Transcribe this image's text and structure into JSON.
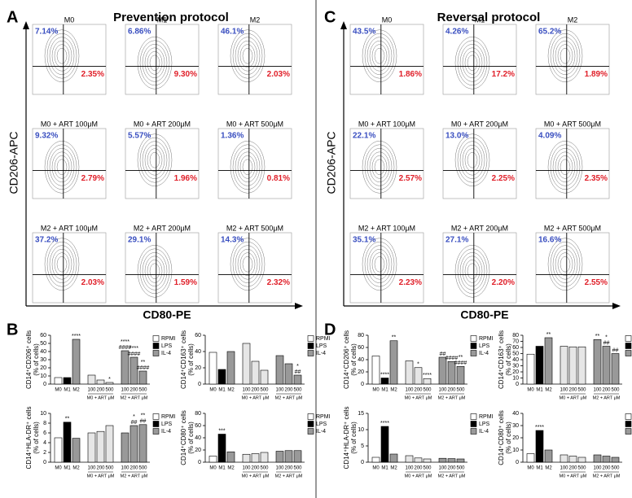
{
  "left": {
    "letter": "A",
    "title": "Prevention protocol",
    "y_axis": "CD206-APC",
    "x_axis": "CD80-PE",
    "bars_letter": "B",
    "plots": [
      {
        "title": "M0",
        "ul": "7.14%",
        "lr": "2.35%"
      },
      {
        "title": "M1",
        "ul": "6.86%",
        "lr": "9.30%"
      },
      {
        "title": "M2",
        "ul": "46.1%",
        "lr": "2.03%"
      },
      {
        "title": "M0 + ART 100μM",
        "ul": "9.32%",
        "lr": "2.79%"
      },
      {
        "title": "M0 + ART 200μM",
        "ul": "5.57%",
        "lr": "1.96%"
      },
      {
        "title": "M0 + ART 500μM",
        "ul": "1.36%",
        "lr": "0.81%"
      },
      {
        "title": "M2 + ART 100μM",
        "ul": "37.2%",
        "lr": "2.03%"
      },
      {
        "title": "M2 + ART 200μM",
        "ul": "29.1%",
        "lr": "1.59%"
      },
      {
        "title": "M2 + ART 500μM",
        "ul": "14.3%",
        "lr": "2.32%"
      }
    ]
  },
  "right": {
    "letter": "C",
    "title": "Reversal protocol",
    "y_axis": "CD206-APC",
    "x_axis": "CD80-PE",
    "bars_letter": "D",
    "plots": [
      {
        "title": "M0",
        "ul": "43.5%",
        "lr": "1.86%"
      },
      {
        "title": "M1",
        "ul": "4.26%",
        "lr": "17.2%"
      },
      {
        "title": "M2",
        "ul": "65.2%",
        "lr": "1.89%"
      },
      {
        "title": "M0 + ART 100μM",
        "ul": "22.1%",
        "lr": "2.57%"
      },
      {
        "title": "M0 + ART 200μM",
        "ul": "13.0%",
        "lr": "2.25%"
      },
      {
        "title": "M0 + ART 500μM",
        "ul": "4.09%",
        "lr": "2.35%"
      },
      {
        "title": "M2 + ART 100μM",
        "ul": "35.1%",
        "lr": "2.23%"
      },
      {
        "title": "M2 + ART 200μM",
        "ul": "27.1%",
        "lr": "2.20%"
      },
      {
        "title": "M2 + ART 500μM",
        "ul": "16.6%",
        "lr": "2.55%"
      }
    ]
  },
  "chart_data": [
    {
      "type": "bar",
      "ylabel": [
        "CD14⁺CD206⁺ cells",
        "(% of cells)"
      ],
      "categories": [
        "M0",
        "M1",
        "M2",
        "100",
        "200",
        "500",
        "100",
        "200",
        "500"
      ],
      "groups": [
        "M0 + ART μM",
        "M2 + ART μM"
      ],
      "values": [
        8,
        8,
        55,
        11,
        5,
        2,
        41,
        33,
        16
      ],
      "colors": [
        "#ffffff",
        "#000000",
        "#999999",
        "#e6e6e6",
        "#e6e6e6",
        "#e6e6e6",
        "#999999",
        "#999999",
        "#999999"
      ],
      "ylim": [
        0,
        60
      ],
      "yticks": [
        0,
        10,
        20,
        30,
        40,
        50,
        60
      ],
      "legend": [
        {
          "name": "RPMI",
          "color": "#ffffff"
        },
        {
          "name": "LPS",
          "color": "#000000"
        },
        {
          "name": "IL-4",
          "color": "#999999"
        }
      ],
      "annotations": [
        {
          "index": 2,
          "lines": [
            "****"
          ]
        },
        {
          "index": 5,
          "lines": [
            "*"
          ]
        },
        {
          "index": 6,
          "lines": [
            "****",
            "####"
          ]
        },
        {
          "index": 7,
          "lines": [
            "****",
            "####"
          ]
        },
        {
          "index": 8,
          "lines": [
            "**",
            "####"
          ]
        }
      ]
    },
    {
      "type": "bar",
      "ylabel": [
        "CD14⁺CD163⁺ cells",
        "(% of cells)"
      ],
      "categories": [
        "M0",
        "M1",
        "M2",
        "100",
        "200",
        "500",
        "100",
        "200",
        "500"
      ],
      "groups": [
        "M0 + ART μM",
        "M2 + ART μM"
      ],
      "values": [
        39,
        18,
        40,
        50,
        28,
        17,
        35,
        25,
        11
      ],
      "colors": [
        "#ffffff",
        "#000000",
        "#999999",
        "#e6e6e6",
        "#e6e6e6",
        "#e6e6e6",
        "#999999",
        "#999999",
        "#999999"
      ],
      "ylim": [
        0,
        60
      ],
      "yticks": [
        0,
        20,
        40,
        60
      ],
      "legend": [
        {
          "name": "RPMI",
          "color": "#ffffff"
        },
        {
          "name": "LPS",
          "color": "#000000"
        },
        {
          "name": "IL-4",
          "color": "#999999"
        }
      ],
      "annotations": [
        {
          "index": 8,
          "lines": [
            "*",
            "##"
          ]
        }
      ]
    },
    {
      "type": "bar",
      "ylabel": [
        "CD14⁺HLA-DR⁺ cells",
        "(% of cells)"
      ],
      "categories": [
        "M0",
        "M1",
        "M2",
        "100",
        "200",
        "500",
        "100",
        "200",
        "500"
      ],
      "groups": [
        "M0 + ART μM",
        "M2 + ART μM"
      ],
      "values": [
        5,
        8.2,
        4.9,
        6,
        6.3,
        7.5,
        6,
        7.5,
        7.7
      ],
      "colors": [
        "#ffffff",
        "#000000",
        "#999999",
        "#e6e6e6",
        "#e6e6e6",
        "#e6e6e6",
        "#999999",
        "#999999",
        "#999999"
      ],
      "ylim": [
        0,
        10
      ],
      "yticks": [
        0,
        2,
        4,
        6,
        8,
        10
      ],
      "legend": [
        {
          "name": "RPMI",
          "color": "#ffffff"
        },
        {
          "name": "LPS",
          "color": "#000000"
        },
        {
          "name": "IL-4",
          "color": "#999999"
        }
      ],
      "annotations": [
        {
          "index": 1,
          "lines": [
            "**"
          ]
        },
        {
          "index": 7,
          "lines": [
            "*",
            "##"
          ]
        },
        {
          "index": 8,
          "lines": [
            "**",
            "##"
          ]
        }
      ]
    },
    {
      "type": "bar",
      "ylabel": [
        "CD14⁺CD80⁺ cells",
        "(% of cells)"
      ],
      "categories": [
        "M0",
        "M1",
        "M2",
        "100",
        "200",
        "500",
        "100",
        "200",
        "500"
      ],
      "groups": [
        "M0 + ART μM",
        "M2 + ART μM"
      ],
      "values": [
        10,
        46,
        17,
        13,
        14,
        16,
        18,
        19,
        19
      ],
      "colors": [
        "#ffffff",
        "#000000",
        "#999999",
        "#e6e6e6",
        "#e6e6e6",
        "#e6e6e6",
        "#999999",
        "#999999",
        "#999999"
      ],
      "ylim": [
        0,
        80
      ],
      "yticks": [
        0,
        20,
        40,
        60,
        80
      ],
      "legend": [
        {
          "name": "RPMI",
          "color": "#ffffff"
        },
        {
          "name": "LPS",
          "color": "#000000"
        },
        {
          "name": "IL-4",
          "color": "#999999"
        }
      ],
      "annotations": [
        {
          "index": 1,
          "lines": [
            "***"
          ]
        }
      ]
    },
    {
      "type": "bar",
      "ylabel": [
        "CD14⁺CD206⁺ cells",
        "(% of cells)"
      ],
      "categories": [
        "M0",
        "M1",
        "M2",
        "100",
        "200",
        "500",
        "100",
        "200",
        "500"
      ],
      "groups": [
        "M0 + ART μM",
        "M2 + ART μM"
      ],
      "values": [
        46,
        10,
        71,
        38,
        27,
        9,
        44,
        37,
        29
      ],
      "colors": [
        "#ffffff",
        "#000000",
        "#999999",
        "#e6e6e6",
        "#e6e6e6",
        "#e6e6e6",
        "#999999",
        "#999999",
        "#999999"
      ],
      "ylim": [
        0,
        80
      ],
      "yticks": [
        0,
        20,
        40,
        60,
        80
      ],
      "legend": [
        {
          "name": "RPMI",
          "color": "#ffffff"
        },
        {
          "name": "LPS",
          "color": "#000000"
        },
        {
          "name": "IL-4",
          "color": "#999999"
        }
      ],
      "annotations": [
        {
          "index": 1,
          "lines": [
            "****"
          ]
        },
        {
          "index": 2,
          "lines": [
            "**"
          ]
        },
        {
          "index": 4,
          "lines": [
            "*"
          ]
        },
        {
          "index": 5,
          "lines": [
            "****"
          ]
        },
        {
          "index": 6,
          "lines": [
            "##"
          ]
        },
        {
          "index": 7,
          "lines": [
            "####"
          ]
        },
        {
          "index": 8,
          "lines": [
            "**",
            "####"
          ]
        }
      ]
    },
    {
      "type": "bar",
      "ylabel": [
        "CD14⁺CD163⁺ cells",
        "(% of cells)"
      ],
      "categories": [
        "M0",
        "M1",
        "M2",
        "100",
        "200",
        "500",
        "100",
        "200",
        "500"
      ],
      "groups": [
        "M0 + ART μM",
        "M2 + ART μM"
      ],
      "values": [
        49,
        62,
        76,
        62,
        61,
        61,
        73,
        62,
        50
      ],
      "colors": [
        "#ffffff",
        "#000000",
        "#999999",
        "#e6e6e6",
        "#e6e6e6",
        "#e6e6e6",
        "#999999",
        "#999999",
        "#999999"
      ],
      "ylim": [
        0,
        80
      ],
      "yticks": [
        0,
        10,
        20,
        30,
        40,
        50,
        60,
        70,
        80
      ],
      "legend": [
        {
          "name": "RPMI",
          "color": "#ffffff"
        },
        {
          "name": "LPS",
          "color": "#000000"
        },
        {
          "name": "IL-4",
          "color": "#999999"
        }
      ],
      "annotations": [
        {
          "index": 2,
          "lines": [
            "**"
          ]
        },
        {
          "index": 6,
          "lines": [
            "**"
          ]
        },
        {
          "index": 7,
          "lines": [
            "*",
            "##"
          ]
        },
        {
          "index": 8,
          "lines": [
            "##"
          ]
        }
      ]
    },
    {
      "type": "bar",
      "ylabel": [
        "CD14⁺HLA-DR⁺ cells",
        "(% of cells)"
      ],
      "categories": [
        "M0",
        "M1",
        "M2",
        "100",
        "200",
        "500",
        "100",
        "200",
        "500"
      ],
      "groups": [
        "M0 + ART μM",
        "M2 + ART μM"
      ],
      "values": [
        1.5,
        11,
        2.5,
        2,
        1.3,
        1,
        1.2,
        1.1,
        1
      ],
      "colors": [
        "#ffffff",
        "#000000",
        "#999999",
        "#e6e6e6",
        "#e6e6e6",
        "#e6e6e6",
        "#999999",
        "#999999",
        "#999999"
      ],
      "ylim": [
        0,
        15
      ],
      "yticks": [
        0,
        5,
        10,
        15
      ],
      "legend": [
        {
          "name": "RPMI",
          "color": "#ffffff"
        },
        {
          "name": "LPS",
          "color": "#000000"
        },
        {
          "name": "IL-4",
          "color": "#999999"
        }
      ],
      "annotations": [
        {
          "index": 1,
          "lines": [
            "****"
          ]
        }
      ]
    },
    {
      "type": "bar",
      "ylabel": [
        "CD14⁺CD80⁺ cells",
        "(% of cells)"
      ],
      "categories": [
        "M0",
        "M1",
        "M2",
        "100",
        "200",
        "500",
        "100",
        "200",
        "500"
      ],
      "groups": [
        "M0 + ART μM",
        "M2 + ART μM"
      ],
      "values": [
        7,
        26,
        10,
        6,
        5,
        4,
        6,
        5,
        4
      ],
      "colors": [
        "#ffffff",
        "#000000",
        "#999999",
        "#e6e6e6",
        "#e6e6e6",
        "#e6e6e6",
        "#999999",
        "#999999",
        "#999999"
      ],
      "ylim": [
        0,
        40
      ],
      "yticks": [
        0,
        10,
        20,
        30,
        40
      ],
      "legend": [
        {
          "name": "RPMI",
          "color": "#ffffff"
        },
        {
          "name": "LPS",
          "color": "#000000"
        },
        {
          "name": "IL-4",
          "color": "#999999"
        }
      ],
      "annotations": [
        {
          "index": 1,
          "lines": [
            "****"
          ]
        }
      ]
    }
  ]
}
